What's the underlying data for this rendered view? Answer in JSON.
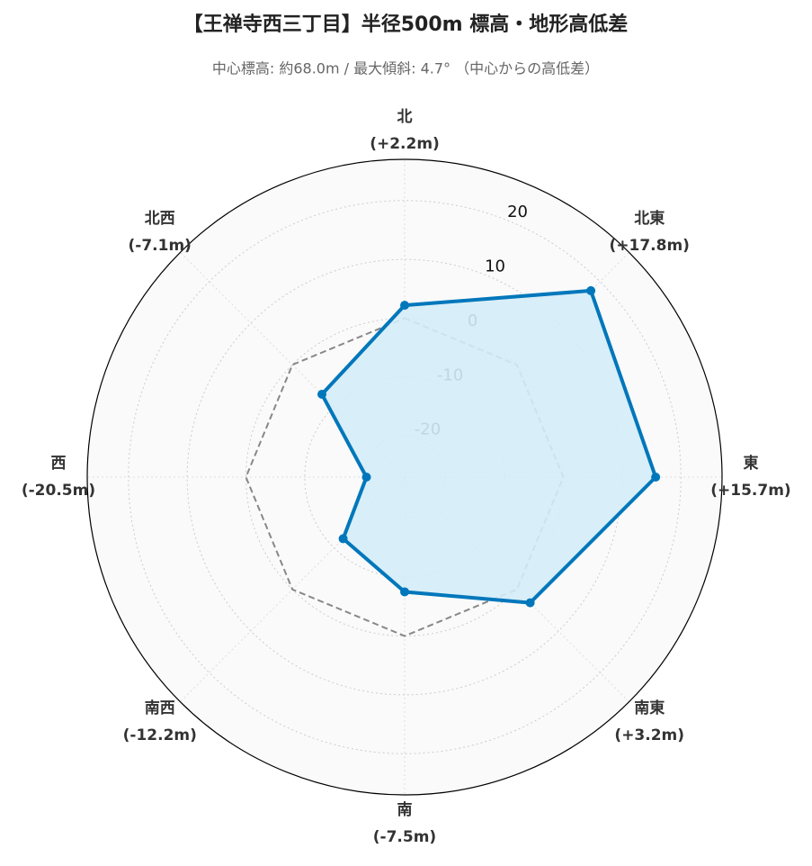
{
  "chart_data": {
    "type": "radar",
    "title": "【王禅寺西三丁目】半径500m 標高・地形高低差",
    "subtitle": "中心標高: 約68.0m / 最大傾斜: 4.7° （中心からの高低差）",
    "categories": [
      "北",
      "北東",
      "東",
      "南東",
      "南",
      "南西",
      "西",
      "北西"
    ],
    "values": [
      2.2,
      17.8,
      15.7,
      3.2,
      -7.5,
      -12.2,
      -20.5,
      -7.1
    ],
    "value_labels": [
      "(+2.2m)",
      "(+17.8m)",
      "(+15.7m)",
      "(+3.2m)",
      "(-7.5m)",
      "(-12.2m)",
      "(-20.5m)",
      "(-7.1m)"
    ],
    "color": "#0077bb",
    "fill_color": "#d4ecf7",
    "reference_line": {
      "value": 0,
      "color": "#888888"
    },
    "ylim": [
      -27,
      27
    ],
    "yticks": [
      -20,
      -10,
      0,
      10,
      20
    ],
    "grid": true
  }
}
